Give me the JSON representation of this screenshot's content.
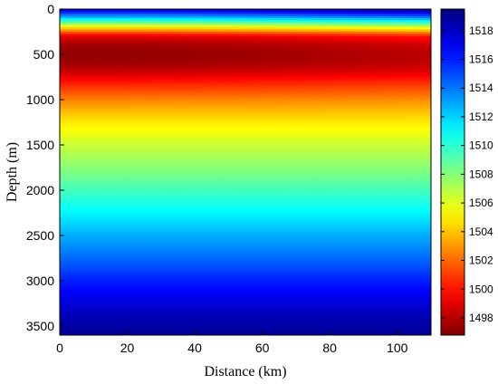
{
  "chart_data": {
    "type": "heatmap",
    "title": "",
    "xlabel": "Distance (km)",
    "ylabel": "Depth (m)",
    "xlim": [
      0,
      110
    ],
    "ylim": [
      0,
      3600
    ],
    "y_reversed": true,
    "x_ticks": [
      0,
      20,
      40,
      60,
      80,
      100
    ],
    "x_tick_labels": [
      "0",
      "20",
      "40",
      "60",
      "80",
      "100"
    ],
    "y_ticks": [
      0,
      500,
      1000,
      1500,
      2000,
      2500,
      3000,
      3500
    ],
    "y_tick_labels": [
      "0",
      "500",
      "1000",
      "1500",
      "2000",
      "2500",
      "3000",
      "3500"
    ],
    "colormap": "jet",
    "colormap_reversed": true,
    "colorbar": {
      "range": [
        1496.8,
        1519.5
      ],
      "ticks": [
        1498,
        1500,
        1502,
        1504,
        1506,
        1508,
        1510,
        1512,
        1514,
        1516,
        1518
      ],
      "tick_labels": [
        "1498",
        "1500",
        "1502",
        "1504",
        "1506",
        "1508",
        "1510",
        "1512",
        "1514",
        "1516",
        "1518"
      ],
      "placement": "right"
    },
    "sound_speed_profile": {
      "depth": [
        0,
        100,
        200,
        300,
        400,
        500,
        600,
        700,
        800,
        1000,
        1200,
        1500,
        1800,
        2000,
        2200,
        2500,
        2800,
        3000,
        3200,
        3400,
        3600
      ],
      "value": [
        1518,
        1512,
        1505,
        1499,
        1497.5,
        1497.2,
        1497.5,
        1498.5,
        1500,
        1502.5,
        1504.5,
        1506.5,
        1508.2,
        1509.5,
        1510.8,
        1512.8,
        1514.6,
        1516,
        1517.2,
        1518.3,
        1519
      ]
    },
    "range_variation": {
      "distance": [
        0,
        20,
        40,
        60,
        80,
        100,
        110
      ],
      "shallow_offset": [
        0,
        0,
        0.2,
        0.5,
        0.9,
        1.3,
        1.5
      ]
    }
  }
}
